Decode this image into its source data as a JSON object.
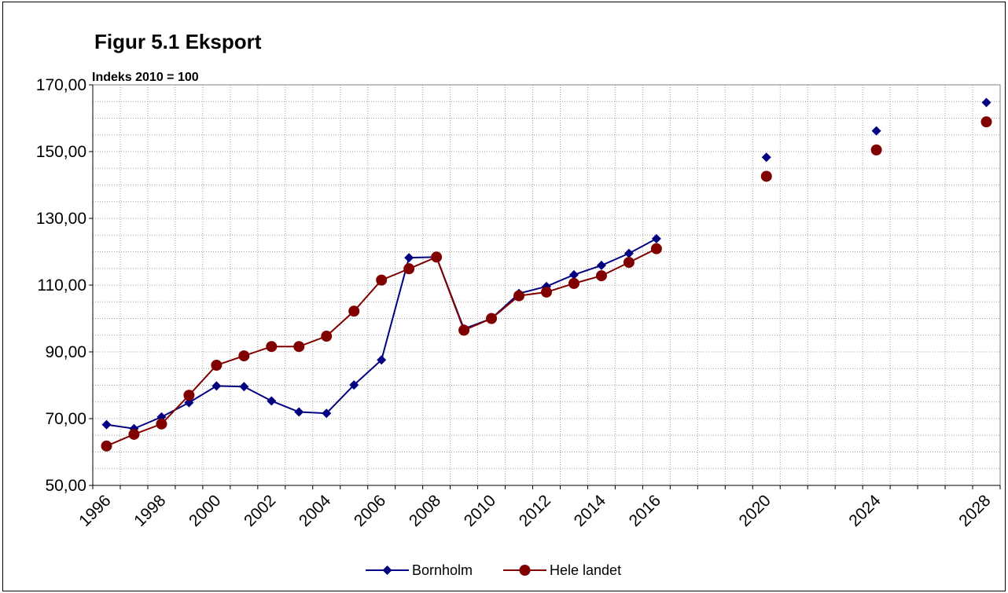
{
  "chart_data": {
    "type": "line",
    "title": "Figur 5.1 Eksport",
    "ylabel": "Indeks 2010 = 100",
    "ylim": [
      50,
      170
    ],
    "y_ticks": [
      "170,00",
      "150,00",
      "130,00",
      "110,00",
      "90,00",
      "70,00",
      "50,00"
    ],
    "y_tick_values": [
      170,
      150,
      130,
      110,
      90,
      70,
      50
    ],
    "x_ticks": [
      "1996",
      "1998",
      "2000",
      "2002",
      "2004",
      "2006",
      "2008",
      "2010",
      "2012",
      "2014",
      "2016",
      "2020",
      "2024",
      "2028"
    ],
    "categories": [
      "1996",
      "1997",
      "1998",
      "1999",
      "2000",
      "2001",
      "2002",
      "2003",
      "2004",
      "2005",
      "2006",
      "2007",
      "2008",
      "2009",
      "2010",
      "2011",
      "2012",
      "2013",
      "2014",
      "2015",
      "2016",
      "",
      "",
      "",
      "2020",
      "",
      "",
      "",
      "2024",
      "",
      "",
      "",
      "2028"
    ],
    "grid": true,
    "legend_position": "bottom",
    "series": [
      {
        "name": "Bornholm",
        "color": "#000080",
        "marker": "diamond",
        "values": [
          68.2,
          67.0,
          70.5,
          74.8,
          79.8,
          79.6,
          75.3,
          72.0,
          71.6,
          80.1,
          87.6,
          118.2,
          118.4,
          96.9,
          100.0,
          107.5,
          109.6,
          113.1,
          115.9,
          119.5,
          123.9,
          null,
          null,
          null,
          148.3,
          null,
          null,
          null,
          156.2,
          null,
          null,
          null,
          164.7
        ],
        "connected_through_index": 20
      },
      {
        "name": "Hele landet",
        "color": "#800000",
        "marker": "circle",
        "values": [
          61.8,
          65.3,
          68.4,
          77.0,
          86.0,
          88.8,
          91.6,
          91.6,
          94.7,
          102.2,
          111.5,
          114.9,
          118.4,
          96.5,
          100.0,
          106.8,
          107.9,
          110.5,
          112.8,
          116.8,
          120.9,
          null,
          null,
          null,
          142.6,
          null,
          null,
          null,
          150.5,
          null,
          null,
          null,
          158.9
        ],
        "connected_through_index": 20
      }
    ]
  }
}
